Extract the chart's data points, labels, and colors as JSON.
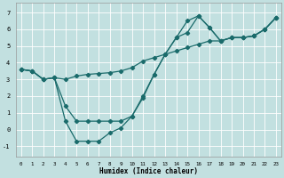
{
  "xlabel": "Humidex (Indice chaleur)",
  "background_color": "#c2e0e0",
  "grid_color": "#ffffff",
  "line_color": "#1a6b6b",
  "xlim": [
    -0.5,
    23.5
  ],
  "ylim": [
    -1.6,
    7.6
  ],
  "xticks": [
    0,
    1,
    2,
    3,
    4,
    5,
    6,
    7,
    8,
    9,
    10,
    11,
    12,
    13,
    14,
    15,
    16,
    17,
    18,
    19,
    20,
    21,
    22,
    23
  ],
  "yticks": [
    -1,
    0,
    1,
    2,
    3,
    4,
    5,
    6,
    7
  ],
  "line1_x": [
    0,
    1,
    2,
    3,
    4,
    5,
    6,
    7,
    8,
    9,
    10,
    11,
    12,
    13,
    14,
    15,
    16,
    17,
    18,
    19,
    20,
    21,
    22,
    23
  ],
  "line1_y": [
    3.6,
    3.5,
    3.0,
    3.1,
    3.0,
    3.2,
    3.3,
    3.35,
    3.4,
    3.5,
    3.7,
    4.1,
    4.3,
    4.5,
    4.7,
    4.9,
    5.1,
    5.3,
    5.3,
    5.5,
    5.5,
    5.6,
    6.0,
    6.7
  ],
  "line2_x": [
    0,
    1,
    2,
    3,
    4,
    5,
    6,
    7,
    8,
    9,
    10,
    11,
    12,
    13,
    14,
    15,
    16,
    17,
    18,
    19,
    20,
    21,
    22,
    23
  ],
  "line2_y": [
    3.6,
    3.5,
    3.0,
    3.1,
    1.4,
    0.5,
    0.5,
    0.5,
    0.5,
    0.5,
    0.8,
    1.9,
    3.3,
    4.5,
    5.5,
    6.5,
    6.8,
    6.1,
    5.3,
    5.5,
    5.5,
    5.6,
    6.0,
    6.7
  ],
  "line3_x": [
    0,
    1,
    2,
    3,
    4,
    5,
    6,
    7,
    8,
    9,
    10,
    11,
    12,
    13,
    14,
    15,
    16,
    17,
    18,
    19,
    20,
    21,
    22,
    23
  ],
  "line3_y": [
    3.6,
    3.5,
    3.0,
    3.1,
    0.5,
    -0.7,
    -0.7,
    -0.7,
    -0.2,
    0.1,
    0.8,
    2.0,
    3.3,
    4.5,
    5.5,
    5.8,
    6.8,
    6.1,
    5.3,
    5.5,
    5.5,
    5.6,
    6.0,
    6.7
  ]
}
